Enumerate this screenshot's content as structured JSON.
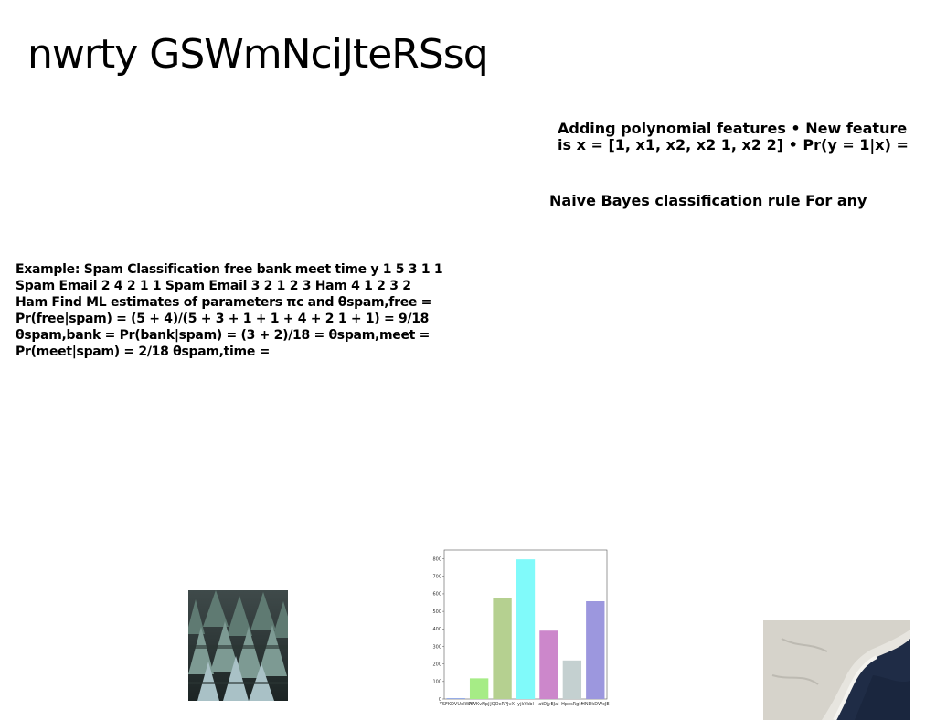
{
  "title": "nwrty GSWmNciJteRSsq",
  "blocks": {
    "polynomial": "Adding polynomial features • New feature is x = [1, x1, x2, x2 1, x2 2] • Pr(y = 1|x) =",
    "naive_bayes": "Naive Bayes classification rule For any",
    "spam_example": "Example: Spam Classification free bank meet time y 1 5 3 1 1 Spam Email 2 4 2 1 1 Spam Email 3 2 1 2 3 Ham 4 1 2 3 2 Ham Find ML estimates of parameters πc and θspam,free = Pr(free|spam) = (5 + 4)/(5 + 3 + 1 + 1 + 4 + 2 1 + 1) = 9/18 θspam,bank = Pr(bank|spam) = (3 + 2)/18 = θspam,meet = Pr(meet|spam) = 2/18 θspam,time ="
  },
  "chart_data": {
    "type": "bar",
    "categories": [
      "YSFKDVUeIWA",
      "RWKvNpJ",
      "JQOxRPJvX",
      "yjkYkbl",
      "atDjyEJal",
      "HpesRgM",
      "HNDkDWcJE"
    ],
    "values": [
      3,
      118,
      578,
      797,
      390,
      220,
      558
    ],
    "colors": [
      "#4a6fd4",
      "#a6ec86",
      "#b5d090",
      "#80fafa",
      "#cc87cb",
      "#c4d0d0",
      "#9c97de"
    ],
    "ylim": [
      0,
      850
    ],
    "yticks": [
      0,
      100,
      200,
      300,
      400,
      500,
      600,
      700,
      800
    ]
  }
}
